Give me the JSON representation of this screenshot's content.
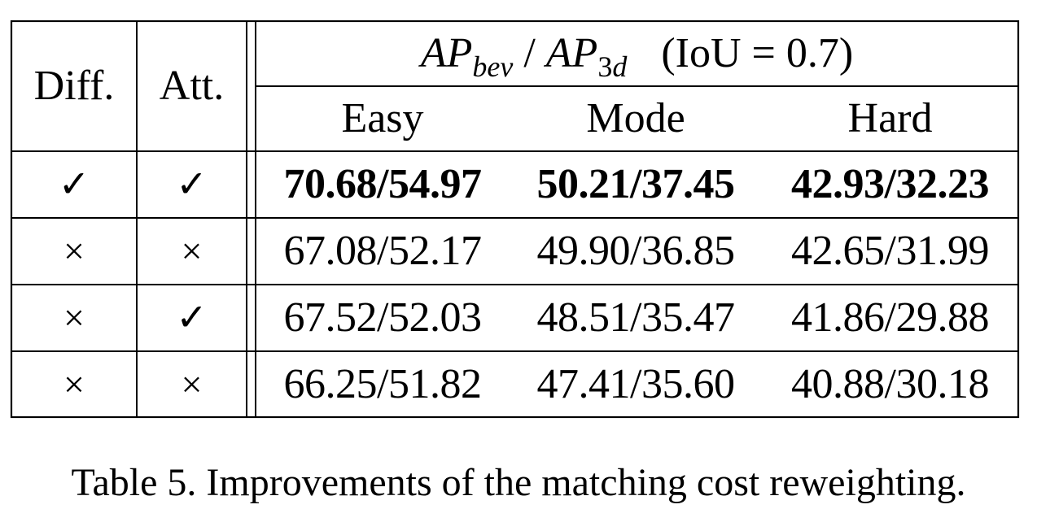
{
  "table": {
    "header": {
      "diff": "Diff.",
      "att": "Att.",
      "metric": {
        "ap1_base": "AP",
        "ap1_sub": "bev",
        "sep": " / ",
        "ap2_base": "AP",
        "ap2_sub_num": "3",
        "ap2_sub_var": "d",
        "condition": "(IoU = 0.7)"
      },
      "easy": "Easy",
      "mode": "Mode",
      "hard": "Hard"
    },
    "rows": [
      {
        "diff": "✓",
        "att": "✓",
        "easy": "70.68/54.97",
        "mode": "50.21/37.45",
        "hard": "42.93/32.23",
        "bold": true
      },
      {
        "diff": "×",
        "att": "×",
        "easy": "67.08/52.17",
        "mode": "49.90/36.85",
        "hard": "42.65/31.99",
        "bold": false
      },
      {
        "diff": "×",
        "att": "✓",
        "easy": "67.52/52.03",
        "mode": "48.51/35.47",
        "hard": "41.86/29.88",
        "bold": false
      },
      {
        "diff": "×",
        "att": "×",
        "easy": "66.25/51.82",
        "mode": "47.41/35.60",
        "hard": "40.88/30.18",
        "bold": false
      }
    ]
  },
  "caption": "Table 5. Improvements of the matching cost reweighting."
}
